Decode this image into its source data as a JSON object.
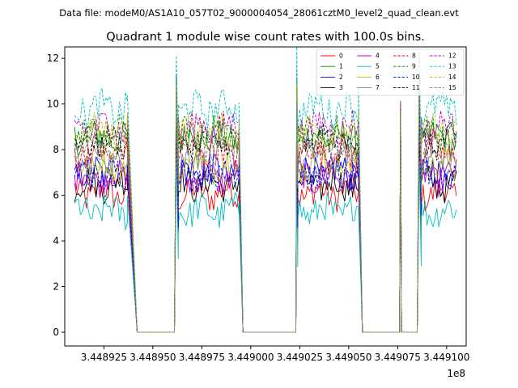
{
  "chart_data": {
    "type": "line",
    "suptitle": "Data file: modeM0/AS1A10_057T02_9000004054_28061cztM0_level2_quad_clean.evt",
    "title": "Quadrant 1 module wise count rates with 100.0s bins.",
    "xlabel": "",
    "ylabel": "",
    "x_offset_label": "1e8",
    "xlim": [
      3.448905,
      3.44911
    ],
    "ylim": [
      -0.6,
      12.5
    ],
    "xticks": [
      3.448925,
      3.44895,
      3.448975,
      3.449,
      3.449025,
      3.44905,
      3.449075,
      3.4491
    ],
    "xtick_labels": [
      "3.448925",
      "3.448950",
      "3.448975",
      "3.449000",
      "3.449025",
      "3.449050",
      "3.449075",
      "3.449100"
    ],
    "yticks": [
      0,
      2,
      4,
      6,
      8,
      10,
      12
    ],
    "ytick_labels": [
      "0",
      "2",
      "4",
      "6",
      "8",
      "10",
      "12"
    ],
    "grid": false,
    "legend_position": "top-right",
    "legend_columns": 4,
    "segments": [
      {
        "start": 3.44891,
        "end": 3.448937,
        "kind": "on"
      },
      {
        "start": 3.448937,
        "end": 3.448942,
        "kind": "fall"
      },
      {
        "start": 3.448942,
        "end": 3.448961,
        "kind": "off"
      },
      {
        "start": 3.448961,
        "end": 3.448963,
        "kind": "rise"
      },
      {
        "start": 3.448963,
        "end": 3.448994,
        "kind": "on"
      },
      {
        "start": 3.448994,
        "end": 3.448996,
        "kind": "fall"
      },
      {
        "start": 3.448996,
        "end": 3.449023,
        "kind": "off"
      },
      {
        "start": 3.449023,
        "end": 3.449024,
        "kind": "rise"
      },
      {
        "start": 3.449024,
        "end": 3.449055,
        "kind": "on"
      },
      {
        "start": 3.449055,
        "end": 3.449057,
        "kind": "fall"
      },
      {
        "start": 3.449057,
        "end": 3.449076,
        "kind": "off"
      },
      {
        "start": 3.449076,
        "end": 3.449077,
        "kind": "spike"
      },
      {
        "start": 3.449077,
        "end": 3.449079,
        "kind": "off"
      },
      {
        "start": 3.449079,
        "end": 3.449085,
        "kind": "off"
      },
      {
        "start": 3.449085,
        "end": 3.449087,
        "kind": "rise"
      },
      {
        "start": 3.449087,
        "end": 3.449105,
        "kind": "on"
      }
    ],
    "series": [
      {
        "name": "0",
        "color": "#ff0000",
        "dash": "solid",
        "level": 6.1
      },
      {
        "name": "1",
        "color": "#008000",
        "dash": "solid",
        "level": 8.5
      },
      {
        "name": "2",
        "color": "#0000ff",
        "dash": "solid",
        "level": 7.0
      },
      {
        "name": "3",
        "color": "#000000",
        "dash": "solid",
        "level": 6.5
      },
      {
        "name": "4",
        "color": "#bf00bf",
        "dash": "solid",
        "level": 6.8
      },
      {
        "name": "5",
        "color": "#00bfbf",
        "dash": "solid",
        "level": 5.3
      },
      {
        "name": "6",
        "color": "#bfbf00",
        "dash": "solid",
        "level": 7.3
      },
      {
        "name": "7",
        "color": "#808080",
        "dash": "solid",
        "level": 7.6
      },
      {
        "name": "8",
        "color": "#ff0000",
        "dash": "dashed",
        "level": 7.9
      },
      {
        "name": "9",
        "color": "#008000",
        "dash": "dashed",
        "level": 8.7
      },
      {
        "name": "10",
        "color": "#0000ff",
        "dash": "dashed",
        "level": 6.9
      },
      {
        "name": "11",
        "color": "#000000",
        "dash": "dashed",
        "level": 8.3
      },
      {
        "name": "12",
        "color": "#bf00bf",
        "dash": "dashed",
        "level": 9.0
      },
      {
        "name": "13",
        "color": "#00bfbf",
        "dash": "dashed",
        "level": 9.8
      },
      {
        "name": "14",
        "color": "#bfbf00",
        "dash": "dashed",
        "level": 8.8
      },
      {
        "name": "15",
        "color": "#808080",
        "dash": "dashed",
        "level": 8.1
      }
    ]
  }
}
